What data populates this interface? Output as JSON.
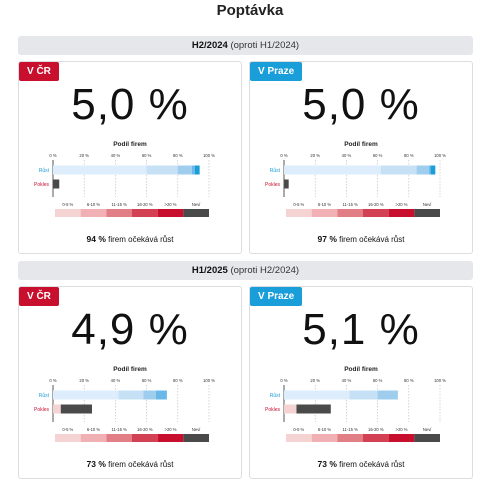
{
  "page": {
    "title": "Poptávka"
  },
  "legend_scale": {
    "labels": [
      "0-5 %",
      "6-10 %",
      "11-15 %",
      "16-20 %",
      ">20 %",
      "Neví"
    ],
    "colors": [
      "#f6d3d3",
      "#f0b0b4",
      "#e27e86",
      "#d24254",
      "#c8102e",
      "#4a4a4a"
    ]
  },
  "row_labels": {
    "rust": "Růst",
    "pokles": "Pokles"
  },
  "podil_label": "Podíl firem",
  "foot_suffix": "firem očekává růst",
  "sections": [
    {
      "title": "H2/2024",
      "subtitle": "(oproti H1/2024)",
      "panels": [
        {
          "tag": "V ČR",
          "region": "cr",
          "value": "5,0 %",
          "share": "94 %"
        },
        {
          "tag": "V Praze",
          "region": "pr",
          "value": "5,0 %",
          "share": "97 %"
        }
      ]
    },
    {
      "title": "H1/2025",
      "subtitle": "(oproti H2/2024)",
      "panels": [
        {
          "tag": "V ČR",
          "region": "cr",
          "value": "4,9 %",
          "share": "73 %"
        },
        {
          "tag": "V Praze",
          "region": "pr",
          "value": "5,1 %",
          "share": "73 %"
        }
      ]
    }
  ],
  "chart_data": [
    {
      "type": "bar",
      "title": "",
      "xlim": [
        0,
        100
      ],
      "x_ticks": [
        "0 %",
        "20 %",
        "40 %",
        "60 %",
        "80 %",
        "100 %"
      ],
      "categories": [
        "Růst",
        "Pokles"
      ],
      "segment_colors": {
        "rust": [
          "#deedfb",
          "#c6e0f6",
          "#9fcdee",
          "#6ab8e8",
          "#1a9ed9",
          "#4a4a4a"
        ],
        "pokles": [
          "#f6d3d3",
          "#f0b0b4",
          "#e27e86",
          "#d24254",
          "#c8102e",
          "#4a4a4a"
        ]
      },
      "rust_segments": [
        60,
        20,
        9,
        2,
        3,
        0
      ],
      "pokles_segments": [
        0,
        0,
        0,
        0,
        0,
        4
      ]
    },
    {
      "type": "bar",
      "title": "",
      "xlim": [
        0,
        100
      ],
      "x_ticks": [
        "0 %",
        "20 %",
        "40 %",
        "60 %",
        "80 %",
        "100 %"
      ],
      "categories": [
        "Růst",
        "Pokles"
      ],
      "segment_colors": {
        "rust": [
          "#deedfb",
          "#c6e0f6",
          "#9fcdee",
          "#6ab8e8",
          "#1a9ed9",
          "#4a4a4a"
        ],
        "pokles": [
          "#f6d3d3",
          "#f0b0b4",
          "#e27e86",
          "#d24254",
          "#c8102e",
          "#4a4a4a"
        ]
      },
      "rust_segments": [
        62,
        23,
        8,
        1,
        3,
        0
      ],
      "pokles_segments": [
        0,
        0,
        0,
        0,
        0,
        3
      ]
    },
    {
      "type": "bar",
      "title": "",
      "xlim": [
        0,
        100
      ],
      "x_ticks": [
        "0 %",
        "20 %",
        "40 %",
        "60 %",
        "80 %",
        "100 %"
      ],
      "categories": [
        "Růst",
        "Pokles"
      ],
      "segment_colors": {
        "rust": [
          "#deedfb",
          "#c6e0f6",
          "#9fcdee",
          "#6ab8e8",
          "#1a9ed9",
          "#4a4a4a"
        ],
        "pokles": [
          "#f6d3d3",
          "#f0b0b4",
          "#e27e86",
          "#d24254",
          "#c8102e",
          "#4a4a4a"
        ]
      },
      "rust_segments": [
        42,
        16,
        8,
        7,
        0,
        0
      ],
      "pokles_segments": [
        5,
        0,
        0,
        0,
        0,
        20
      ]
    },
    {
      "type": "bar",
      "title": "",
      "xlim": [
        0,
        100
      ],
      "x_ticks": [
        "0 %",
        "20 %",
        "40 %",
        "60 %",
        "80 %",
        "100 %"
      ],
      "categories": [
        "Růst",
        "Pokles"
      ],
      "segment_colors": {
        "rust": [
          "#deedfb",
          "#c6e0f6",
          "#9fcdee",
          "#6ab8e8",
          "#1a9ed9",
          "#4a4a4a"
        ],
        "pokles": [
          "#f6d3d3",
          "#f0b0b4",
          "#e27e86",
          "#d24254",
          "#c8102e",
          "#4a4a4a"
        ]
      },
      "rust_segments": [
        42,
        18,
        13,
        0,
        0,
        0
      ],
      "pokles_segments": [
        8,
        0,
        0,
        0,
        0,
        22
      ]
    }
  ]
}
